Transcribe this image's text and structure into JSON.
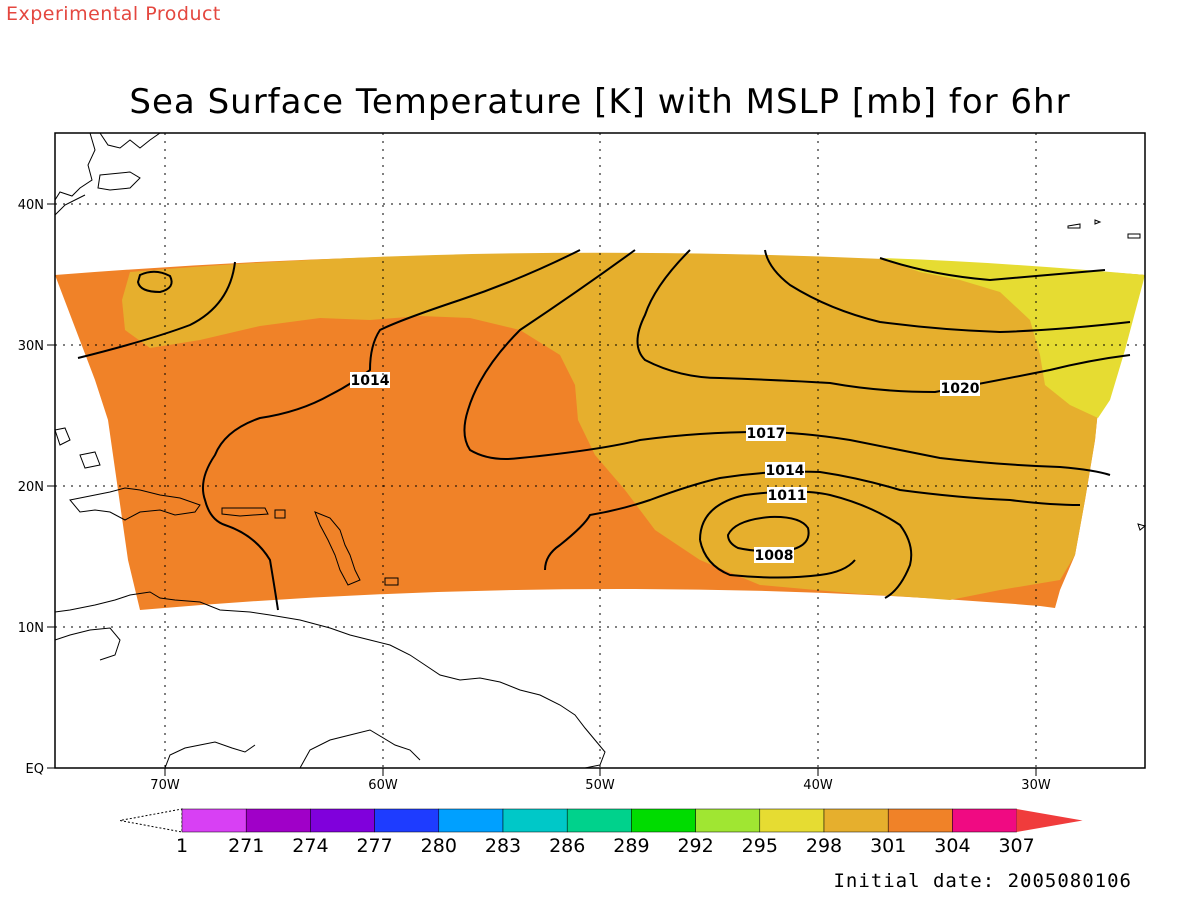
{
  "header": {
    "product_tag": "Experimental Product",
    "title": "Sea Surface Temperature [K] with MSLP [mb] for 6hr"
  },
  "footer": {
    "initial_date": "Initial date: 2005080106"
  },
  "map": {
    "region": "Tropical North Atlantic",
    "lon_range": [
      -75.5,
      -25
    ],
    "lat_range": [
      0,
      45
    ],
    "lon_ticks": [
      "70W",
      "60W",
      "50W",
      "40W",
      "30W"
    ],
    "lat_ticks": [
      "EQ",
      "10N",
      "20N",
      "30N",
      "40N"
    ],
    "grid": true,
    "sst_shading_classes": [
      "298",
      "301",
      "304"
    ],
    "mslp_contour_labels": [
      "1014",
      "1020",
      "1017",
      "1014",
      "1011",
      "1008"
    ]
  },
  "colorbar": {
    "labels": [
      "1",
      "271",
      "274",
      "277",
      "280",
      "283",
      "286",
      "289",
      "292",
      "295",
      "298",
      "301",
      "304",
      "307"
    ],
    "colors": [
      "#d840f4",
      "#a000c8",
      "#8000dc",
      "#1e3cff",
      "#00a0ff",
      "#00c8c8",
      "#00d28c",
      "#00dc00",
      "#a0e632",
      "#e6dc32",
      "#e6af2d",
      "#f08228",
      "#f00a82",
      "#f03c3c"
    ]
  },
  "colors": {
    "sst_298": "#e6dc32",
    "sst_301": "#e6af2d",
    "sst_304": "#f08228",
    "contour": "#000000",
    "experimental_tag": "#e4473f"
  }
}
